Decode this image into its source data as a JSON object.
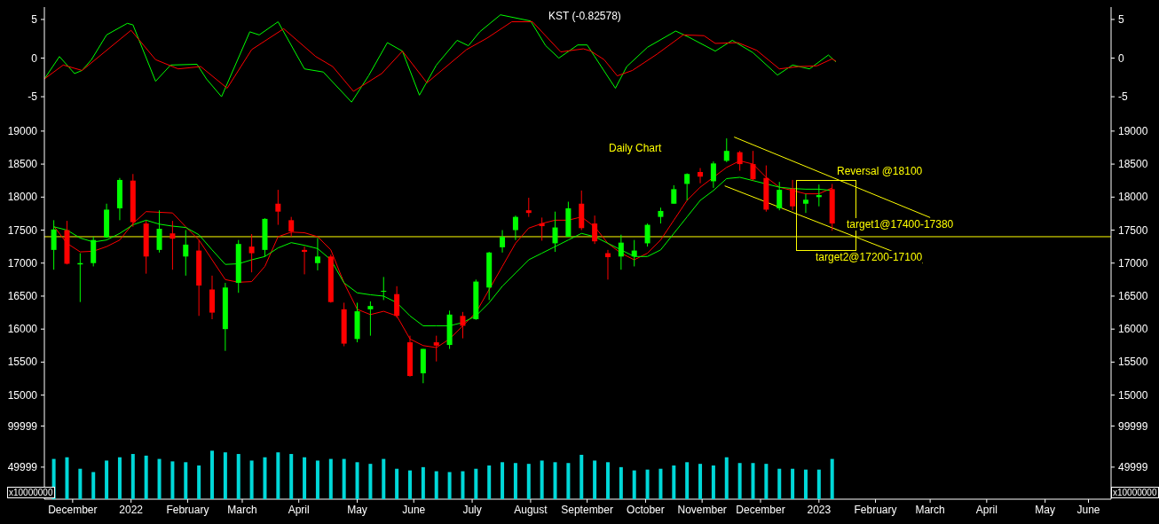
{
  "chart_data": [
    {
      "type": "line",
      "title": "KST (-0.82578)",
      "xlim": [
        "2021-12-01",
        "2023-06-20"
      ],
      "ylim": [
        -7.4,
        6.6
      ],
      "yticks": [
        -5,
        0,
        5
      ],
      "y2lim": [
        -7.4,
        6.6
      ],
      "y2ticks": [
        -5,
        0,
        5
      ],
      "tick_labels": "y",
      "series": [
        {
          "color": "#00ff00",
          "x": [
            "2021-12-01",
            "2021-12-09",
            "2021-12-17",
            "2021-12-21",
            "2021-12-26",
            "2022-01-03",
            "2022-01-14",
            "2022-01-17",
            "2022-01-29",
            "2022-02-06",
            "2022-02-20",
            "2022-02-25",
            "2022-03-05",
            "2022-03-20",
            "2022-03-25",
            "2022-04-04",
            "2022-04-18",
            "2022-04-28",
            "2022-05-13",
            "2022-05-22",
            "2022-06-01",
            "2022-06-09",
            "2022-06-18",
            "2022-06-27",
            "2022-07-08",
            "2022-07-14",
            "2022-07-20",
            "2022-07-31",
            "2022-08-16",
            "2022-08-24",
            "2022-08-31",
            "2022-09-10",
            "2022-09-15",
            "2022-09-19",
            "2022-09-30",
            "2022-10-06",
            "2022-10-17",
            "2022-11-01",
            "2022-11-08",
            "2022-11-22",
            "2022-12-01",
            "2022-12-12",
            "2022-12-25",
            "2023-01-02",
            "2023-01-11",
            "2023-01-21",
            "2023-01-25"
          ],
          "values": [
            -2.7,
            0.2,
            -2.0,
            -1.6,
            -0.2,
            3.0,
            4.5,
            4.3,
            -3.0,
            -0.9,
            -0.8,
            -2.7,
            -5.0,
            3.4,
            3.0,
            4.7,
            -1.4,
            -1.8,
            -5.7,
            -2.3,
            2.0,
            0.9,
            -4.8,
            -0.9,
            2.3,
            1.6,
            3.4,
            5.6,
            4.8,
            1.6,
            0.0,
            1.7,
            1.7,
            0.2,
            -3.9,
            -1.1,
            1.4,
            3.5,
            2.7,
            0.9,
            2.3,
            0.7,
            -2.2,
            -0.9,
            -1.4,
            0.4,
            -0.5
          ]
        },
        {
          "color": "#ff0000",
          "x": [
            "2021-12-01",
            "2021-12-11",
            "2021-12-21",
            "2022-01-16",
            "2022-01-29",
            "2022-02-10",
            "2022-02-22",
            "2022-03-08",
            "2022-03-21",
            "2022-04-07",
            "2022-04-24",
            "2022-05-03",
            "2022-05-14",
            "2022-05-29",
            "2022-06-09",
            "2022-06-22",
            "2022-07-13",
            "2022-07-24",
            "2022-08-06",
            "2022-08-17",
            "2022-09-01",
            "2022-09-13",
            "2022-09-17",
            "2022-09-24",
            "2022-10-01",
            "2022-10-09",
            "2022-10-22",
            "2022-11-05",
            "2022-11-16",
            "2022-11-22",
            "2022-12-04",
            "2022-12-14",
            "2022-12-26",
            "2023-01-05",
            "2023-01-15",
            "2023-01-23",
            "2023-01-25"
          ],
          "values": [
            -2.7,
            -0.9,
            -1.6,
            3.6,
            -0.2,
            -1.4,
            -1.1,
            -3.9,
            1.1,
            3.8,
            0.2,
            -1.1,
            -4.3,
            -2.0,
            0.9,
            -3.2,
            1.1,
            2.6,
            4.7,
            4.7,
            0.8,
            1.2,
            0.9,
            -0.2,
            -2.3,
            -1.6,
            0.5,
            3.0,
            2.9,
            1.9,
            2.0,
            1.0,
            -1.4,
            -1.1,
            -1.0,
            -0.1,
            -0.4
          ]
        }
      ]
    },
    {
      "type": "candlestick",
      "title": "Daily Chart",
      "xlim": [
        "2021-12-01",
        "2023-06-20"
      ],
      "ylim": [
        14780,
        19240
      ],
      "yticks": [
        15000,
        15500,
        16000,
        16500,
        17000,
        17500,
        18000,
        18500,
        19000
      ],
      "y2lim": [
        14780,
        19240
      ],
      "y2ticks": [
        15000,
        15500,
        16000,
        16500,
        17000,
        17500,
        18000,
        18500,
        19000
      ],
      "tick_labels": "y",
      "x": [
        "2021-12-06",
        "2021-12-13",
        "2021-12-20",
        "2021-12-27",
        "2022-01-03",
        "2022-01-10",
        "2022-01-17",
        "2022-01-24",
        "2022-01-31",
        "2022-02-07",
        "2022-02-14",
        "2022-02-21",
        "2022-02-28",
        "2022-03-07",
        "2022-03-14",
        "2022-03-21",
        "2022-03-28",
        "2022-04-04",
        "2022-04-11",
        "2022-04-18",
        "2022-04-25",
        "2022-05-02",
        "2022-05-09",
        "2022-05-16",
        "2022-05-23",
        "2022-05-30",
        "2022-06-06",
        "2022-06-13",
        "2022-06-20",
        "2022-06-27",
        "2022-07-04",
        "2022-07-11",
        "2022-07-18",
        "2022-07-25",
        "2022-08-01",
        "2022-08-08",
        "2022-08-15",
        "2022-08-22",
        "2022-08-29",
        "2022-09-05",
        "2022-09-12",
        "2022-09-19",
        "2022-09-26",
        "2022-10-03",
        "2022-10-10",
        "2022-10-17",
        "2022-10-24",
        "2022-10-31",
        "2022-11-07",
        "2022-11-14",
        "2022-11-21",
        "2022-11-28",
        "2022-12-05",
        "2022-12-12",
        "2022-12-19",
        "2022-12-26",
        "2023-01-02",
        "2023-01-09",
        "2023-01-16",
        "2023-01-23"
      ],
      "ohlc": [
        [
          17200,
          17650,
          16900,
          17510
        ],
        [
          17500,
          17640,
          16980,
          16990
        ],
        [
          16980,
          17150,
          16410,
          17000
        ],
        [
          17000,
          17400,
          16950,
          17350
        ],
        [
          17390,
          17900,
          17380,
          17810
        ],
        [
          17830,
          18290,
          17650,
          18260
        ],
        [
          18250,
          18350,
          17550,
          17620
        ],
        [
          17600,
          17640,
          16840,
          17100
        ],
        [
          17200,
          17800,
          17160,
          17520
        ],
        [
          17450,
          17640,
          16900,
          17370
        ],
        [
          17100,
          17500,
          16810,
          17280
        ],
        [
          17190,
          17350,
          16200,
          16660
        ],
        [
          16600,
          16810,
          16150,
          16250
        ],
        [
          16000,
          16700,
          15670,
          16630
        ],
        [
          16700,
          17350,
          16550,
          17290
        ],
        [
          17250,
          17440,
          16860,
          17150
        ],
        [
          17200,
          17680,
          17100,
          17670
        ],
        [
          17900,
          18110,
          17580,
          17780
        ],
        [
          17650,
          17700,
          17400,
          17480
        ],
        [
          17200,
          17250,
          16830,
          17170
        ],
        [
          17000,
          17380,
          16890,
          17100
        ],
        [
          17100,
          17130,
          16400,
          16410
        ],
        [
          16300,
          16400,
          15740,
          15780
        ],
        [
          15850,
          16400,
          15800,
          16270
        ],
        [
          16300,
          16420,
          15900,
          16350
        ],
        [
          16580,
          16790,
          16440,
          16580
        ],
        [
          16530,
          16650,
          16170,
          16200
        ],
        [
          15800,
          15900,
          15280,
          15290
        ],
        [
          15330,
          15700,
          15180,
          15700
        ],
        [
          15800,
          15900,
          15510,
          15750
        ],
        [
          15760,
          16280,
          15700,
          16220
        ],
        [
          16200,
          16260,
          15860,
          16050
        ],
        [
          16150,
          16750,
          16140,
          16720
        ],
        [
          16630,
          17170,
          16440,
          17160
        ],
        [
          17240,
          17500,
          17160,
          17400
        ],
        [
          17500,
          17720,
          17350,
          17700
        ],
        [
          17800,
          17990,
          17700,
          17760
        ],
        [
          17600,
          17690,
          17340,
          17560
        ],
        [
          17300,
          17780,
          17170,
          17540
        ],
        [
          17400,
          17930,
          17400,
          17830
        ],
        [
          17900,
          18100,
          17500,
          17530
        ],
        [
          17600,
          17720,
          17290,
          17330
        ],
        [
          17150,
          17200,
          16750,
          17090
        ],
        [
          17100,
          17430,
          16900,
          17310
        ],
        [
          17100,
          17350,
          16950,
          17190
        ],
        [
          17300,
          17600,
          17250,
          17580
        ],
        [
          17700,
          17840,
          17600,
          17790
        ],
        [
          17900,
          18180,
          17900,
          18120
        ],
        [
          18200,
          18360,
          17950,
          18350
        ],
        [
          18380,
          18440,
          18210,
          18310
        ],
        [
          18240,
          18540,
          18140,
          18510
        ],
        [
          18550,
          18890,
          18530,
          18700
        ],
        [
          18680,
          18700,
          18400,
          18500
        ],
        [
          18500,
          18700,
          18250,
          18270
        ],
        [
          18290,
          18480,
          17780,
          17810
        ],
        [
          17830,
          18230,
          17800,
          18110
        ],
        [
          18130,
          18260,
          17800,
          17860
        ],
        [
          17900,
          18050,
          17760,
          17960
        ],
        [
          18000,
          18190,
          17860,
          18030
        ],
        [
          18120,
          18200,
          17490,
          17600
        ]
      ],
      "colors": [
        "#00ff00",
        "#ff0000",
        "#00ff00",
        "#00ff00",
        "#00ff00",
        "#00ff00",
        "#ff0000",
        "#ff0000",
        "#00ff00",
        "#ff0000",
        "#00ff00",
        "#ff0000",
        "#ff0000",
        "#00ff00",
        "#00ff00",
        "#ff0000",
        "#00ff00",
        "#ff0000",
        "#ff0000",
        "#ff0000",
        "#00ff00",
        "#ff0000",
        "#ff0000",
        "#00ff00",
        "#00ff00",
        "#00ff00",
        "#ff0000",
        "#ff0000",
        "#00ff00",
        "#ff0000",
        "#00ff00",
        "#ff0000",
        "#00ff00",
        "#00ff00",
        "#00ff00",
        "#00ff00",
        "#ff0000",
        "#ff0000",
        "#00ff00",
        "#00ff00",
        "#ff0000",
        "#ff0000",
        "#ff0000",
        "#00ff00",
        "#00ff00",
        "#00ff00",
        "#00ff00",
        "#00ff00",
        "#00ff00",
        "#ff0000",
        "#00ff00",
        "#00ff00",
        "#ff0000",
        "#ff0000",
        "#ff0000",
        "#00ff00",
        "#ff0000",
        "#00ff00",
        "#00ff00",
        "#ff0000"
      ],
      "series": [
        {
          "type": "line",
          "color": "#ff0000",
          "values": [
            17560,
            17300,
            17170,
            17180,
            17250,
            17350,
            17600,
            17780,
            17770,
            17760,
            17550,
            17350,
            17050,
            16750,
            16710,
            16720,
            16950,
            17400,
            17470,
            17460,
            17400,
            17200,
            16700,
            16300,
            16220,
            16270,
            16200,
            15850,
            15750,
            15720,
            15850,
            16050,
            16250,
            16600,
            16950,
            17300,
            17530,
            17600,
            17650,
            17650,
            17700,
            17550,
            17300,
            17150,
            17050,
            17150,
            17350,
            17650,
            17950,
            18150,
            18300,
            18450,
            18550,
            18500,
            18300,
            18150,
            18100,
            18050,
            18050,
            18140
          ]
        },
        {
          "type": "line",
          "color": "#00ff00",
          "values": [
            17550,
            17500,
            17380,
            17320,
            17350,
            17450,
            17580,
            17650,
            17590,
            17560,
            17540,
            17430,
            17200,
            16980,
            16990,
            17050,
            17100,
            17230,
            17310,
            17270,
            17220,
            17050,
            16700,
            16550,
            16520,
            16500,
            16400,
            16200,
            16050,
            16050,
            16050,
            16100,
            16200,
            16400,
            16650,
            16850,
            17050,
            17150,
            17250,
            17350,
            17450,
            17400,
            17300,
            17200,
            17100,
            17100,
            17200,
            17450,
            17700,
            17950,
            18100,
            18280,
            18300,
            18250,
            18200,
            18150,
            18130,
            18120,
            18120,
            18100
          ]
        },
        {
          "type": "line",
          "color": "#ffff00",
          "x": [
            "2022-12-02",
            "2023-03-16"
          ],
          "values": [
            18910,
            17690
          ]
        },
        {
          "type": "line",
          "color": "#ffff00",
          "x": [
            "2022-11-27",
            "2023-03-12"
          ],
          "values": [
            18170,
            17000
          ]
        }
      ],
      "ref_lines": [
        {
          "axis": "y",
          "value": 17400,
          "color": "#ffff00"
        }
      ],
      "annotations": [
        "Reversal @18100",
        "target1@17400-17380",
        "target2@17200-17100"
      ]
    },
    {
      "type": "bar",
      "ylabel": "x10000000",
      "y2label": "x10000000",
      "color": "#00d8d8",
      "xlim": [
        "2021-12-01",
        "2023-06-20"
      ],
      "ylim": [
        11000,
        120000
      ],
      "yticks": [
        49999,
        99999
      ],
      "y2lim": [
        11000,
        120000
      ],
      "y2ticks": [
        49999,
        99999
      ],
      "xticks": [
        {
          "value": "2021-12-16",
          "label": "December"
        },
        {
          "value": "2022-01-16",
          "label": "2022"
        },
        {
          "value": "2022-02-15",
          "label": "February"
        },
        {
          "value": "2022-03-16",
          "label": "March"
        },
        {
          "value": "2022-04-15",
          "label": "April"
        },
        {
          "value": "2022-05-16",
          "label": "May"
        },
        {
          "value": "2022-06-15",
          "label": "June"
        },
        {
          "value": "2022-07-16",
          "label": "July"
        },
        {
          "value": "2022-08-16",
          "label": "August"
        },
        {
          "value": "2022-09-15",
          "label": "September"
        },
        {
          "value": "2022-10-16",
          "label": "October"
        },
        {
          "value": "2022-11-15",
          "label": "November"
        },
        {
          "value": "2022-12-16",
          "label": "December"
        },
        {
          "value": "2023-01-16",
          "label": "2023"
        },
        {
          "value": "2023-02-15",
          "label": "February"
        },
        {
          "value": "2023-03-16",
          "label": "March"
        },
        {
          "value": "2023-04-15",
          "label": "April"
        },
        {
          "value": "2023-05-16",
          "label": "May"
        },
        {
          "value": "2023-06-08",
          "label": "June"
        }
      ],
      "x": [
        "2021-12-06",
        "2021-12-13",
        "2021-12-20",
        "2021-12-27",
        "2022-01-03",
        "2022-01-10",
        "2022-01-17",
        "2022-01-24",
        "2022-01-31",
        "2022-02-07",
        "2022-02-14",
        "2022-02-21",
        "2022-02-28",
        "2022-03-07",
        "2022-03-14",
        "2022-03-21",
        "2022-03-28",
        "2022-04-04",
        "2022-04-11",
        "2022-04-18",
        "2022-04-25",
        "2022-05-02",
        "2022-05-09",
        "2022-05-16",
        "2022-05-23",
        "2022-05-30",
        "2022-06-06",
        "2022-06-13",
        "2022-06-20",
        "2022-06-27",
        "2022-07-04",
        "2022-07-11",
        "2022-07-18",
        "2022-07-25",
        "2022-08-01",
        "2022-08-08",
        "2022-08-15",
        "2022-08-22",
        "2022-08-29",
        "2022-09-05",
        "2022-09-12",
        "2022-09-19",
        "2022-09-26",
        "2022-10-03",
        "2022-10-10",
        "2022-10-17",
        "2022-10-24",
        "2022-10-31",
        "2022-11-07",
        "2022-11-14",
        "2022-11-21",
        "2022-11-28",
        "2022-12-05",
        "2022-12-12",
        "2022-12-19",
        "2022-12-26",
        "2023-01-02",
        "2023-01-09",
        "2023-01-16",
        "2023-01-23"
      ],
      "values": [
        60000,
        62000,
        48000,
        44000,
        58000,
        62000,
        66000,
        64000,
        60000,
        57000,
        56000,
        52000,
        70000,
        68000,
        66000,
        58000,
        62000,
        68000,
        66000,
        62000,
        58000,
        60000,
        60000,
        56000,
        54000,
        60000,
        48000,
        46000,
        50000,
        45000,
        44000,
        45000,
        48000,
        52000,
        56000,
        55000,
        54000,
        58000,
        56000,
        55000,
        65000,
        58000,
        56000,
        50000,
        46000,
        47000,
        48000,
        52000,
        56000,
        54000,
        52000,
        62000,
        55000,
        55000,
        54000,
        48000,
        48000,
        47000,
        47000,
        60000
      ]
    }
  ]
}
